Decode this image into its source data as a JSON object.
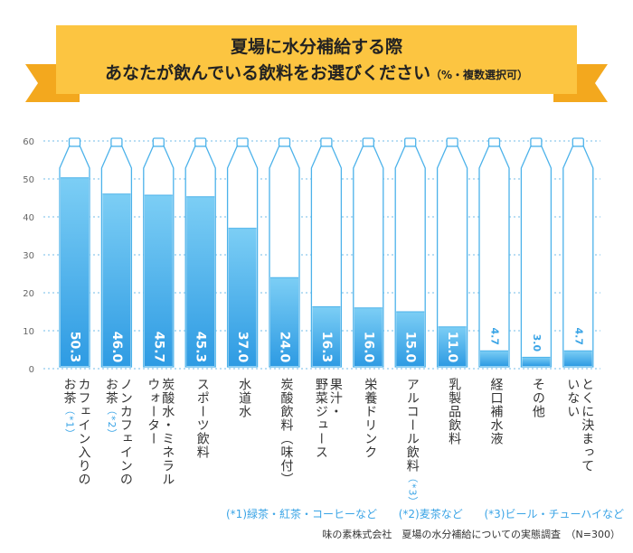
{
  "title": {
    "line1": "夏場に水分補給する際",
    "line2": "あなたが飲んでいる飲料をお選びください",
    "line2_note": "（%・複数選択可）"
  },
  "chart_data": {
    "type": "bar",
    "ylim": [
      0,
      60
    ],
    "yticks": [
      0,
      10,
      20,
      30,
      40,
      50,
      60
    ],
    "grid": true,
    "categories": [
      {
        "lines": [
          "カフェイン入りの",
          "お茶"
        ],
        "note": "（*1）"
      },
      {
        "lines": [
          "ノンカフェインの",
          "お茶"
        ],
        "note": "（*2）"
      },
      {
        "lines": [
          "炭酸水・ミネラル",
          "ウォーター"
        ],
        "note": ""
      },
      {
        "lines": [
          "スポーツ飲料"
        ],
        "note": ""
      },
      {
        "lines": [
          "水道水"
        ],
        "note": ""
      },
      {
        "lines": [
          "炭酸飲料（味付）"
        ],
        "note": ""
      },
      {
        "lines": [
          "果汁・",
          "野菜ジュース"
        ],
        "note": ""
      },
      {
        "lines": [
          "栄養ドリンク"
        ],
        "note": ""
      },
      {
        "lines": [
          "アルコール飲料"
        ],
        "note": "（*3）"
      },
      {
        "lines": [
          "乳製品飲料"
        ],
        "note": ""
      },
      {
        "lines": [
          "経口補水液"
        ],
        "note": ""
      },
      {
        "lines": [
          "その他"
        ],
        "note": ""
      },
      {
        "lines": [
          "とくに決まって",
          "いない"
        ],
        "note": ""
      }
    ],
    "values": [
      50.3,
      46.0,
      45.7,
      45.3,
      37.0,
      24.0,
      16.3,
      16.0,
      15.0,
      11.0,
      4.7,
      3.0,
      4.7
    ],
    "value_labels": [
      "50.3",
      "46.0",
      "45.7",
      "45.3",
      "37.0",
      "24.0",
      "16.3",
      "16.0",
      "15.0",
      "11.0",
      "4.7",
      "3.0",
      "4.7"
    ]
  },
  "footnotes": [
    "(*1)緑茶・紅茶・コーヒーなど",
    "(*2)麦茶など",
    "(*3)ビール・チューハイなど"
  ],
  "source": "味の素株式会社　夏場の水分補給についての実態調査　（N=300）",
  "colors": {
    "banner": "#fcc541",
    "banner_tail": "#f3a81e",
    "bar_top": "#7ccef5",
    "bar_bottom": "#2e9be3",
    "bottle_outline": "#4cb2ea",
    "grid": "#8fcbee",
    "note": "#3aa4e6"
  }
}
